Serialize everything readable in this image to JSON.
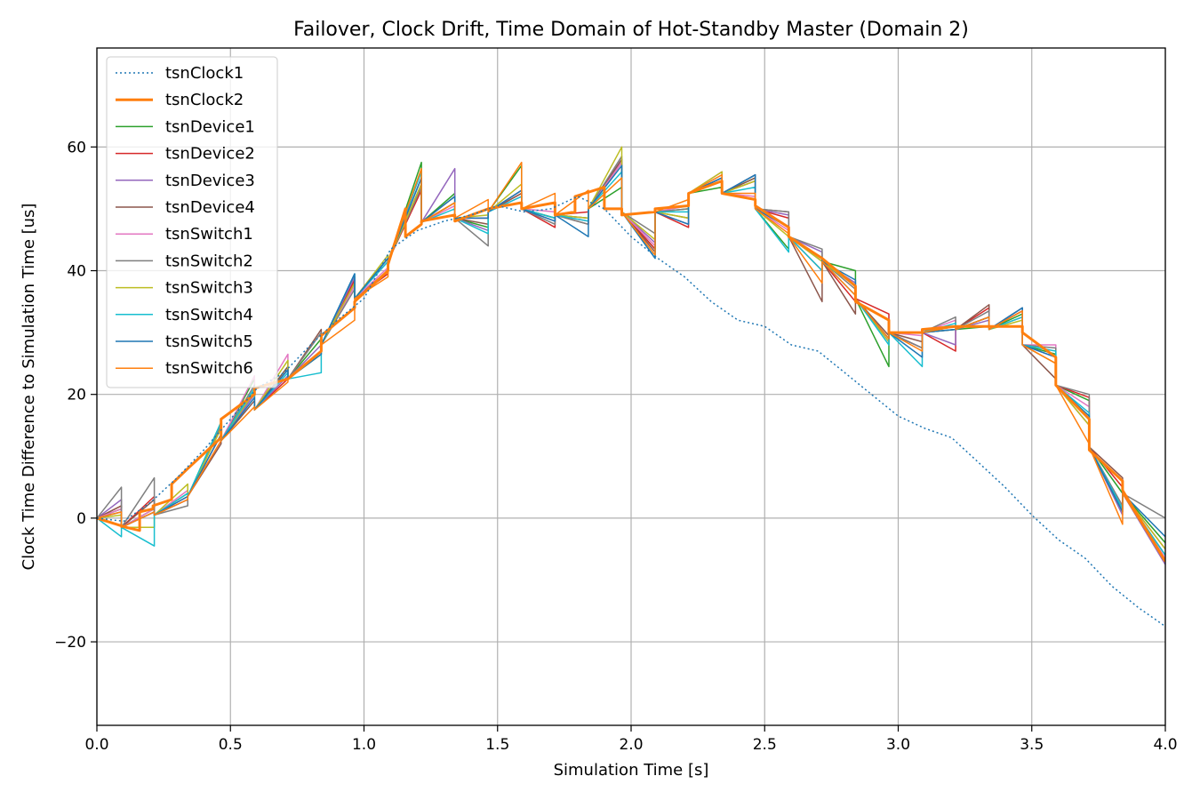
{
  "chart_data": {
    "type": "line",
    "title": "Failover, Clock Drift, Time Domain of Hot-Standby Master (Domain 2)",
    "xlabel": "Simulation Time [s]",
    "ylabel": "Clock Time Difference to Simulation Time [us]",
    "xlim": [
      0,
      4
    ],
    "ylim": [
      -33.5,
      76
    ],
    "xticks": [
      0,
      0.5,
      1,
      1.5,
      2,
      2.5,
      3,
      3.5,
      4
    ],
    "xtick_labels": [
      "0.0",
      "0.5",
      "1.0",
      "1.5",
      "2.0",
      "2.5",
      "3.0",
      "3.5",
      "4.0"
    ],
    "yticks": [
      -20,
      0,
      20,
      40,
      60
    ],
    "ytick_labels": [
      "−20",
      "0",
      "20",
      "40",
      "60"
    ],
    "grid": true,
    "legend_position": "top-left",
    "sync_times": [
      0,
      0.092,
      0.215,
      0.34,
      0.465,
      0.59,
      0.715,
      0.84,
      0.965,
      1.09,
      1.215,
      1.34,
      1.465,
      1.59,
      1.715,
      1.84,
      1.965,
      2.09,
      2.215,
      2.34,
      2.465,
      2.59,
      2.715,
      2.84,
      2.965,
      3.09,
      3.215,
      3.34,
      3.465,
      3.59,
      3.715,
      3.84,
      4.0
    ],
    "series": [
      {
        "name": "tsnClock1",
        "color": "#1f77b4",
        "style": "dotted",
        "width": 1.5,
        "x": [
          0,
          0.1,
          0.2,
          0.3,
          0.4,
          0.5,
          0.6,
          0.7,
          0.8,
          0.9,
          1.0,
          1.1,
          1.2,
          1.3,
          1.4,
          1.5,
          1.6,
          1.7,
          1.8,
          1.9,
          2.0,
          2.1,
          2.2,
          2.3,
          2.4,
          2.5,
          2.6,
          2.7,
          2.8,
          2.9,
          3.0,
          3.1,
          3.2,
          3.3,
          3.4,
          3.5,
          3.6,
          3.7,
          3.8,
          3.9,
          4.0
        ],
        "y": [
          0,
          -0.5,
          2.5,
          6.5,
          11,
          16,
          21,
          23.5,
          28,
          32,
          35.5,
          43.5,
          46.5,
          48,
          49,
          50.5,
          49.5,
          50,
          52,
          50,
          45.5,
          42,
          39,
          35,
          32,
          31,
          28,
          27,
          23.5,
          20,
          16.5,
          14.5,
          13,
          9,
          5,
          0.5,
          -3.5,
          -6.5,
          -11,
          -14.5,
          -17.5
        ]
      },
      {
        "name": "tsnClock2",
        "color": "#ff7f0e",
        "style": "solid",
        "width": 3,
        "x": [
          0,
          0.11,
          0.16,
          0.16,
          0.21,
          0.21,
          0.28,
          0.28,
          0.34,
          0.34,
          0.465,
          0.465,
          0.59,
          0.59,
          0.715,
          0.715,
          0.84,
          0.84,
          0.965,
          0.965,
          1.09,
          1.09,
          1.155,
          1.155,
          1.215,
          1.215,
          1.34,
          1.34,
          1.465,
          1.465,
          1.59,
          1.59,
          1.715,
          1.715,
          1.79,
          1.79,
          1.9,
          1.9,
          1.965,
          1.965,
          2.09,
          2.09,
          2.215,
          2.215,
          2.34,
          2.34,
          2.465,
          2.465,
          2.59,
          2.59,
          2.715,
          2.715,
          2.84,
          2.84,
          2.965,
          2.965,
          3.09,
          3.09,
          3.215,
          3.215,
          3.34,
          3.34,
          3.465,
          3.465,
          3.59,
          3.59,
          3.715,
          3.715,
          3.84,
          3.84,
          4.0
        ],
        "y": [
          0,
          -1.5,
          -2,
          1,
          1.5,
          2,
          3,
          5.5,
          8,
          8,
          13,
          16,
          20,
          21,
          22.5,
          22.5,
          27,
          29.5,
          34,
          35,
          40,
          41,
          50,
          45.5,
          47.5,
          48,
          49,
          48,
          50,
          50,
          51,
          50,
          51,
          49,
          49.5,
          52,
          53.5,
          50,
          50,
          49,
          49.5,
          50,
          50.5,
          52.5,
          54.5,
          52.5,
          51.5,
          50.5,
          47,
          45.5,
          42,
          42,
          37.5,
          35,
          32,
          30,
          30,
          30.5,
          31,
          31,
          31,
          31,
          31,
          30,
          26,
          21.5,
          16,
          11,
          6,
          4.5,
          -7
        ]
      }
    ],
    "device_series": [
      {
        "name": "tsnDevice1",
        "color": "#2ca02c",
        "width": 1.5
      },
      {
        "name": "tsnDevice2",
        "color": "#d62728",
        "width": 1.5
      },
      {
        "name": "tsnDevice3",
        "color": "#9467bd",
        "width": 1.5
      },
      {
        "name": "tsnDevice4",
        "color": "#8c564b",
        "width": 1.5
      },
      {
        "name": "tsnSwitch1",
        "color": "#e377c2",
        "width": 1.5
      },
      {
        "name": "tsnSwitch2",
        "color": "#7f7f7f",
        "width": 1.5
      },
      {
        "name": "tsnSwitch3",
        "color": "#bcbd22",
        "width": 1.5
      },
      {
        "name": "tsnSwitch4",
        "color": "#17becf",
        "width": 1.5
      },
      {
        "name": "tsnSwitch5",
        "color": "#1f77b4",
        "width": 1.5
      },
      {
        "name": "tsnSwitch6",
        "color": "#ff7f0e",
        "width": 1.5
      }
    ],
    "device_values": {
      "synced_at_sync": [
        0,
        -1.5,
        0.5,
        3.5,
        12.5,
        17.5,
        22.5,
        28,
        35.5,
        41.5,
        47.8,
        48.5,
        49.5,
        50,
        49,
        50,
        49.5,
        49.5,
        52.5,
        52.5,
        50,
        45.5,
        41.5,
        35.5,
        30,
        30,
        30.5,
        30.5,
        28,
        21.5,
        11.5,
        4,
        -7
      ],
      "peak_before_sync": [
        [
          0,
          1.5,
          1.5,
          4,
          15.5,
          22.5,
          24.5,
          29,
          39,
          42,
          57.5,
          52.5,
          47,
          57,
          48.5,
          48.5,
          53.5,
          43.5,
          50,
          53.5,
          55,
          43.5,
          41.5,
          40,
          24.5,
          27.5,
          30.5,
          31,
          33,
          26.5,
          19,
          4,
          -4
        ],
        [
          0,
          2,
          3.5,
          3.5,
          13.5,
          20.5,
          22.5,
          27,
          38.5,
          39.5,
          53,
          51,
          48.5,
          52.5,
          47,
          49.5,
          57.5,
          43.5,
          47,
          55,
          54.5,
          48.5,
          40,
          35,
          33,
          27.5,
          27,
          34,
          33.5,
          25,
          19.5,
          5,
          -5
        ],
        [
          0,
          3,
          1,
          3,
          12.5,
          20,
          23,
          28,
          39,
          41.5,
          54,
          56.5,
          46.5,
          52,
          48,
          48.5,
          58,
          44.5,
          47.5,
          54.5,
          55.5,
          49,
          43,
          38,
          28.5,
          27.5,
          28,
          32,
          33.5,
          26,
          15,
          0.5,
          -7.5
        ],
        [
          0,
          2,
          3,
          3,
          12,
          19,
          24.5,
          30.5,
          38,
          40,
          55,
          52,
          47.5,
          52.5,
          48.5,
          47.5,
          58,
          43,
          48.5,
          55,
          55,
          49.5,
          35,
          33,
          29.5,
          28.5,
          30.5,
          34.5,
          32.5,
          22.5,
          16,
          6.5,
          -6
        ],
        [
          0,
          1.5,
          1.5,
          4.5,
          15,
          23,
          26.5,
          27,
          37.5,
          40.5,
          54,
          50.5,
          48.5,
          53,
          49.5,
          48,
          57.5,
          44,
          50.5,
          56,
          52,
          46.5,
          41.5,
          37.5,
          28.5,
          29.5,
          32,
          32.5,
          34,
          28,
          18,
          1.5,
          -6.5
        ],
        [
          0,
          5,
          6.5,
          2,
          15,
          21.5,
          24,
          30,
          37,
          42,
          53.5,
          51,
          44,
          53,
          47.5,
          47.5,
          58.5,
          46,
          50,
          54.5,
          55.5,
          49.5,
          43.5,
          37,
          29,
          27.5,
          32.5,
          33.5,
          34,
          27.5,
          20,
          2,
          0
        ],
        [
          0,
          0.5,
          -1.5,
          5.5,
          14.5,
          20.5,
          25.5,
          26.5,
          38,
          42.5,
          54,
          51,
          49,
          54,
          48.5,
          48.5,
          60,
          45,
          48.5,
          56,
          54.5,
          45.5,
          41.5,
          37.5,
          28.5,
          30,
          31,
          32.5,
          32,
          25,
          15,
          1,
          -5
        ],
        [
          0,
          -3,
          -4.5,
          4,
          15.5,
          21,
          23.5,
          23.5,
          39.5,
          41.5,
          56,
          50,
          46,
          52,
          48.5,
          48,
          56,
          42,
          49.5,
          54.5,
          53.5,
          43,
          40,
          36,
          28,
          24.5,
          31.5,
          32.5,
          32.5,
          27,
          17,
          1.5,
          -6
        ],
        [
          0,
          1,
          1,
          3.5,
          13.5,
          19.5,
          24,
          26.5,
          39.5,
          42,
          55,
          52,
          48.5,
          53,
          48,
          45.5,
          57,
          42,
          47.5,
          55,
          55.5,
          47,
          42,
          38.5,
          29,
          26,
          30.5,
          32.5,
          34,
          26,
          16.5,
          1,
          -3
        ],
        [
          0,
          1,
          1,
          3,
          12.5,
          18,
          22,
          27,
          32,
          39,
          56.5,
          51,
          51.5,
          57.5,
          52.5,
          53,
          55,
          42.5,
          51.5,
          55.5,
          52.5,
          46,
          38,
          36,
          29,
          27,
          31,
          32.5,
          33.5,
          25,
          12,
          -1,
          -7
        ]
      ]
    }
  }
}
